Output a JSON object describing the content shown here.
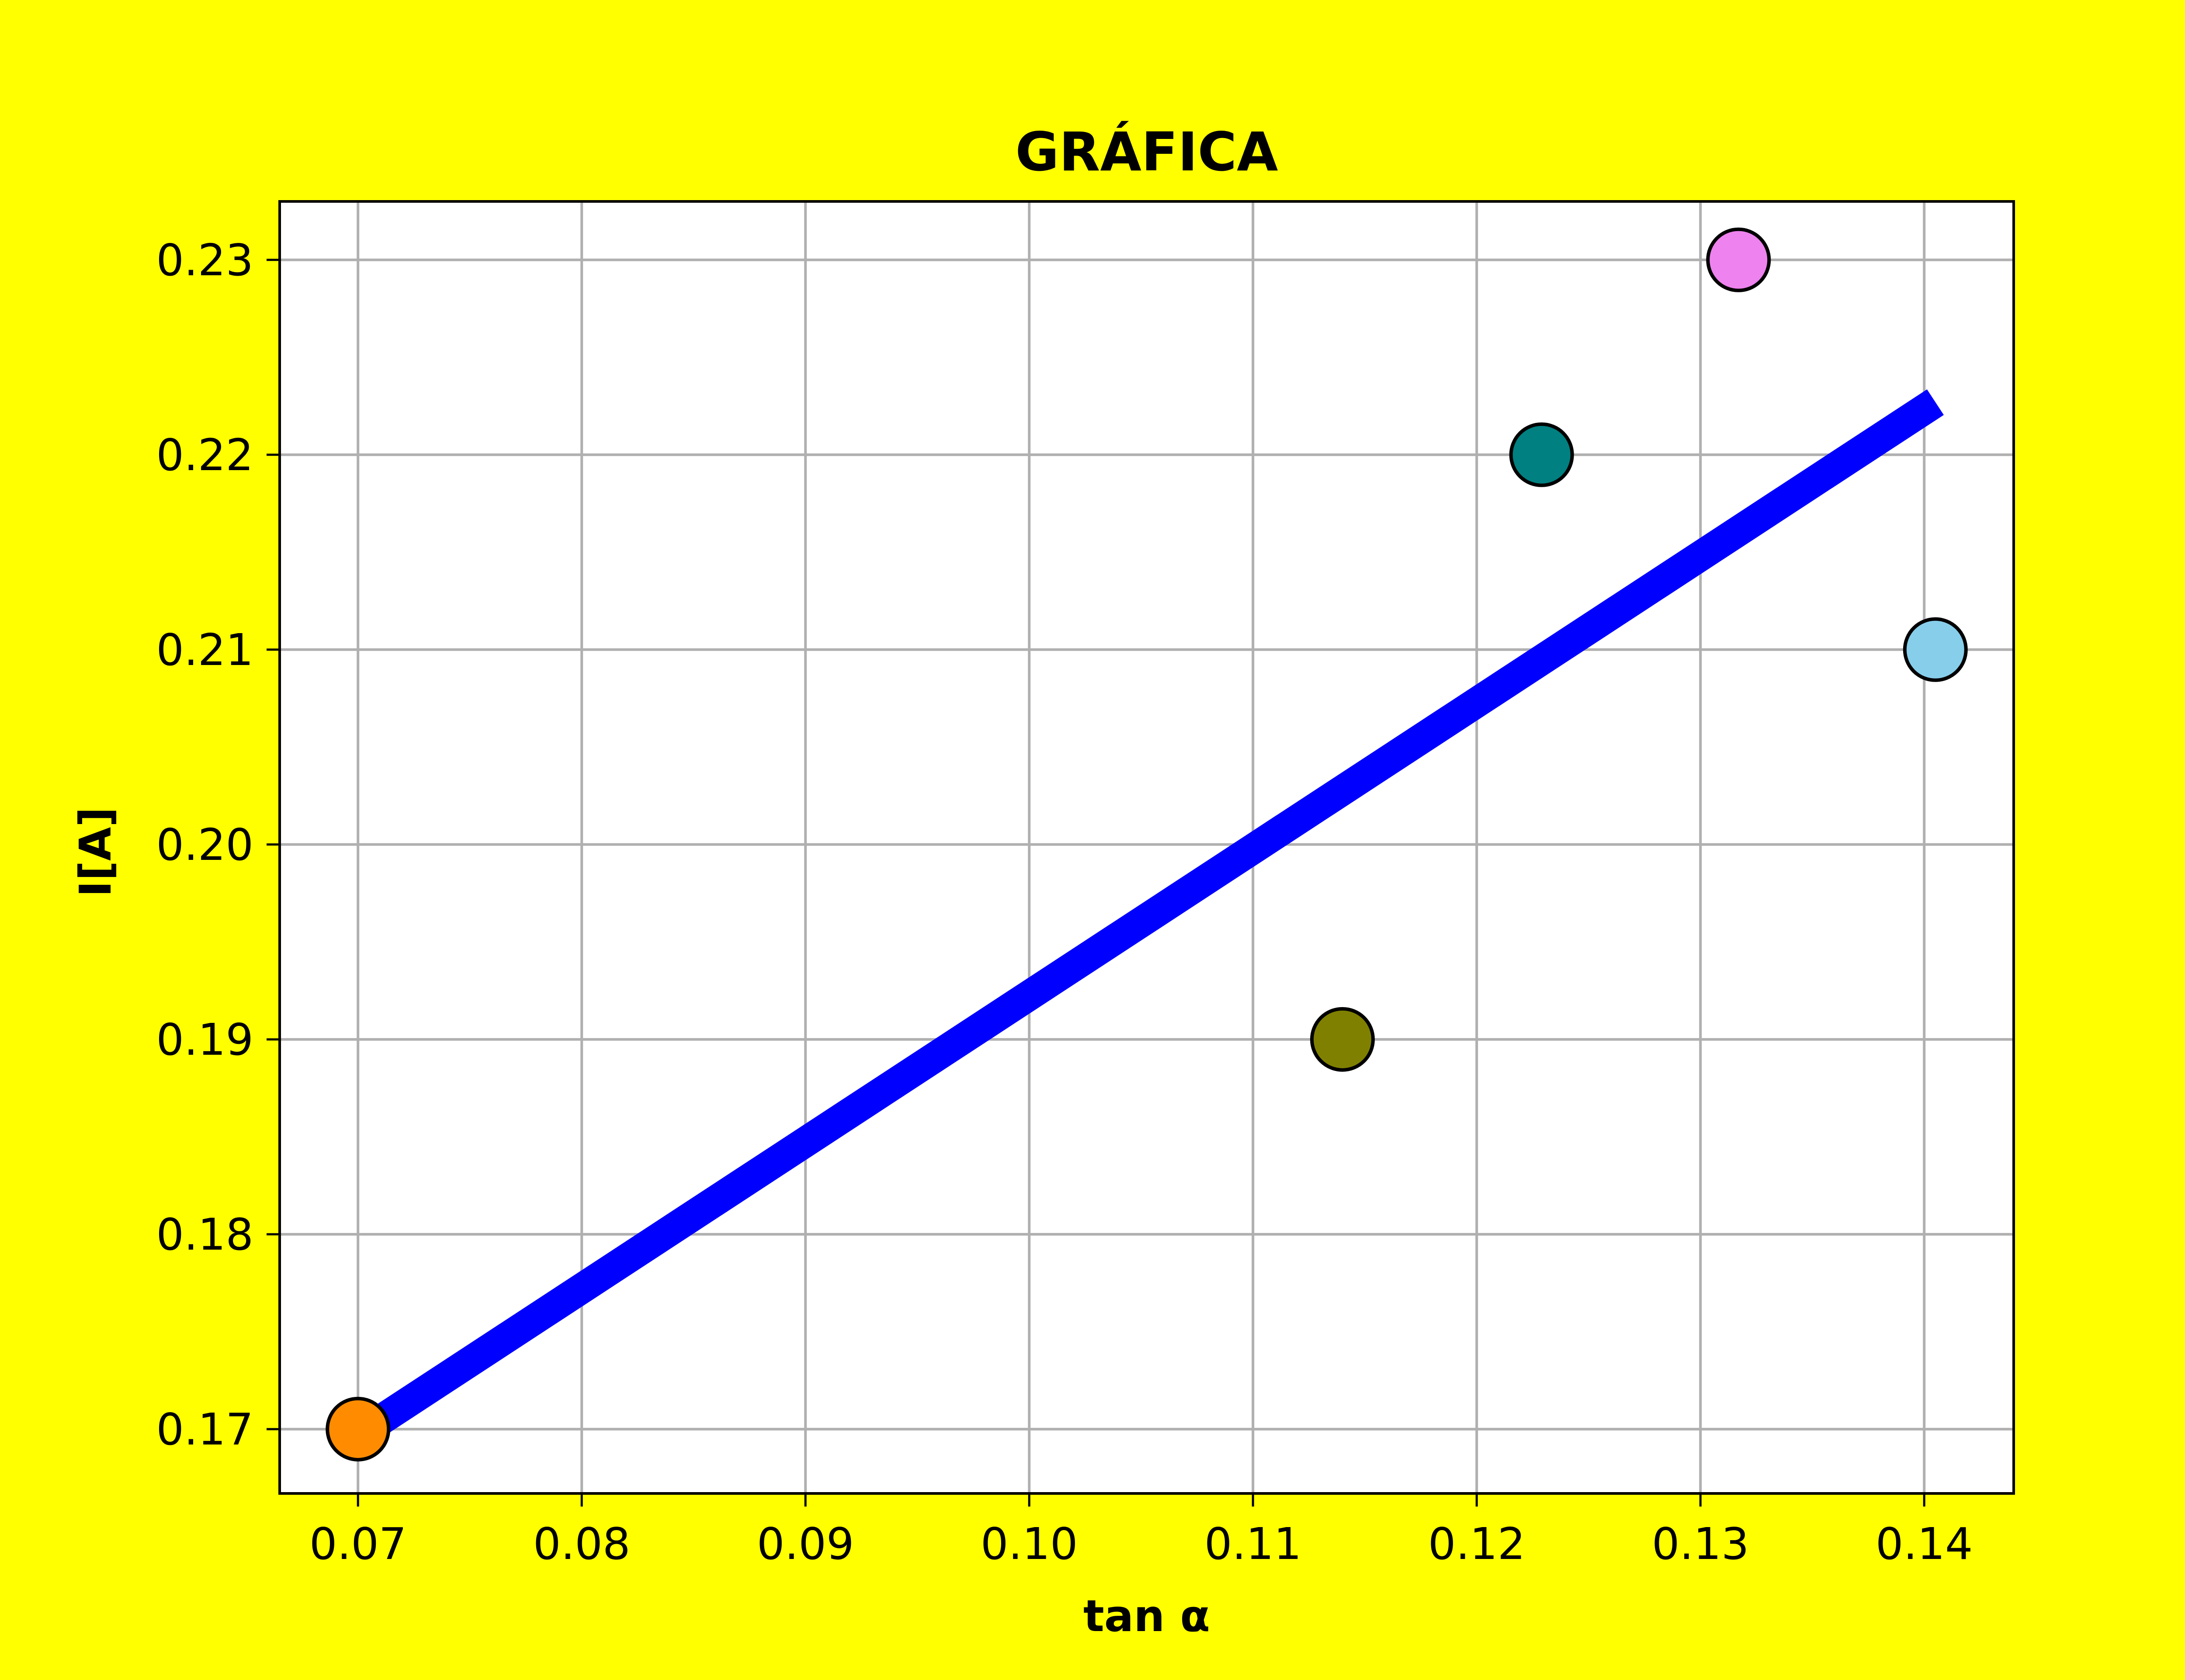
{
  "chart_data": {
    "type": "scatter",
    "title": "GRÁFICA",
    "xlabel": "tan α",
    "ylabel": "I[A]",
    "xlim": [
      0.0665,
      0.144
    ],
    "ylim": [
      0.1667,
      0.233
    ],
    "xticks": [
      "0.07",
      "0.08",
      "0.09",
      "0.10",
      "0.11",
      "0.12",
      "0.13",
      "0.14"
    ],
    "yticks": [
      "0.17",
      "0.18",
      "0.19",
      "0.20",
      "0.21",
      "0.22",
      "0.23"
    ],
    "grid": true,
    "background": "#ffff00",
    "plot_background": "#ffffff",
    "points": [
      {
        "x": 0.07,
        "y": 0.17,
        "color": "#ff8c00"
      },
      {
        "x": 0.114,
        "y": 0.19,
        "color": "#808000"
      },
      {
        "x": 0.1229,
        "y": 0.22,
        "color": "#008080"
      },
      {
        "x": 0.1317,
        "y": 0.23,
        "color": "#ee82ee"
      },
      {
        "x": 0.1405,
        "y": 0.21,
        "color": "#87ceeb"
      }
    ],
    "fit_line": {
      "x": [
        0.07,
        0.1405
      ],
      "y": [
        0.1697,
        0.2227
      ],
      "color": "#0000ff"
    }
  }
}
